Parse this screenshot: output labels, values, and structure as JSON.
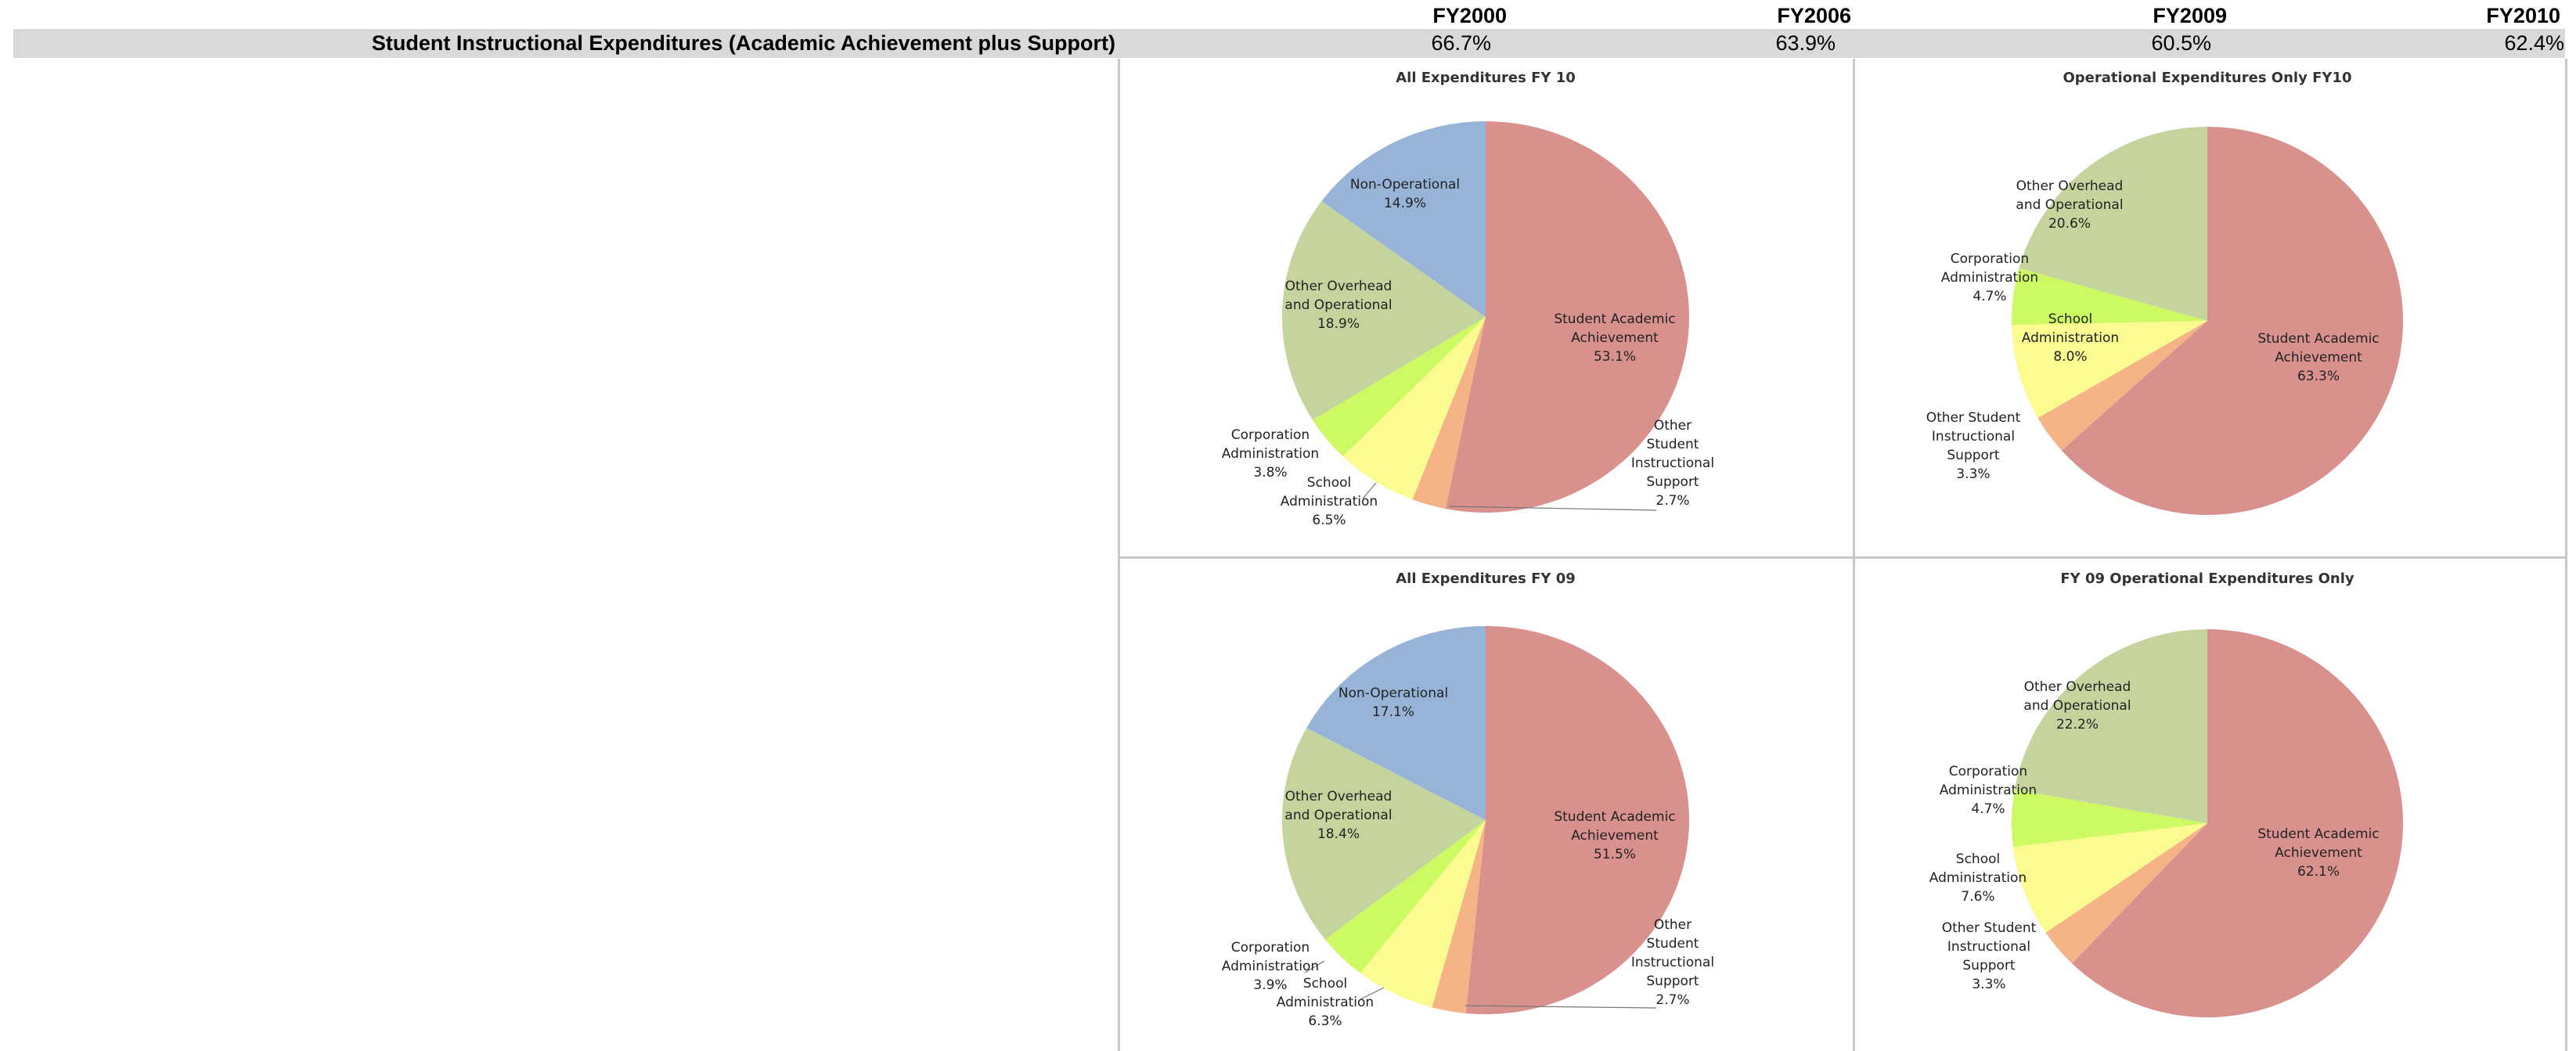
{
  "table": {
    "headers": [
      "FY2000",
      "FY2006",
      "FY2009",
      "FY2010"
    ],
    "row_label": "Student Instructional Expenditures (Academic Achievement plus Support)",
    "values": [
      "66.7%",
      "63.9%",
      "60.5%",
      "62.4%"
    ]
  },
  "colors": {
    "student_academic": "#d9918e",
    "other_student_support": "#f6b386",
    "school_admin": "#fbfb8f",
    "corp_admin": "#cdfa63",
    "other_overhead": "#c5d49d",
    "non_operational": "#97b4d8"
  },
  "chart_data": [
    {
      "type": "pie",
      "title": "All Expenditures FY 10",
      "slices": [
        {
          "label": [
            "Student Academic",
            "Achievement"
          ],
          "value": 53.1,
          "value_text": "53.1%",
          "color_key": "student_academic"
        },
        {
          "label": [
            "Other",
            "Student",
            "Instructional",
            "Support"
          ],
          "value": 2.7,
          "value_text": "2.7%",
          "color_key": "other_student_support"
        },
        {
          "label": [
            "School",
            "Administration"
          ],
          "value": 6.5,
          "value_text": "6.5%",
          "color_key": "school_admin"
        },
        {
          "label": [
            "Corporation",
            "Administration"
          ],
          "value": 3.8,
          "value_text": "3.8%",
          "color_key": "corp_admin"
        },
        {
          "label": [
            "Other Overhead",
            "and Operational"
          ],
          "value": 18.9,
          "value_text": "18.9%",
          "color_key": "other_overhead"
        },
        {
          "label": [
            "Non-Operational"
          ],
          "value": 14.9,
          "value_text": "14.9%",
          "color_key": "non_operational"
        }
      ]
    },
    {
      "type": "pie",
      "title": "Operational Expenditures Only FY10",
      "slices": [
        {
          "label": [
            "Student Academic",
            "Achievement"
          ],
          "value": 63.3,
          "value_text": "63.3%",
          "color_key": "student_academic"
        },
        {
          "label": [
            "Other Student",
            "Instructional",
            "Support"
          ],
          "value": 3.3,
          "value_text": "3.3%",
          "color_key": "other_student_support"
        },
        {
          "label": [
            "School",
            "Administration"
          ],
          "value": 8.0,
          "value_text": "8.0%",
          "color_key": "school_admin"
        },
        {
          "label": [
            "Corporation",
            "Administration"
          ],
          "value": 4.7,
          "value_text": "4.7%",
          "color_key": "corp_admin"
        },
        {
          "label": [
            "Other Overhead",
            "and Operational"
          ],
          "value": 20.6,
          "value_text": "20.6%",
          "color_key": "other_overhead"
        }
      ]
    },
    {
      "type": "pie",
      "title": "All Expenditures FY 09",
      "slices": [
        {
          "label": [
            "Student Academic",
            "Achievement"
          ],
          "value": 51.5,
          "value_text": "51.5%",
          "color_key": "student_academic"
        },
        {
          "label": [
            "Other",
            "Student",
            "Instructional",
            "Support"
          ],
          "value": 2.7,
          "value_text": "2.7%",
          "color_key": "other_student_support"
        },
        {
          "label": [
            "School",
            "Administration"
          ],
          "value": 6.3,
          "value_text": "6.3%",
          "color_key": "school_admin"
        },
        {
          "label": [
            "Corporation",
            "Administration"
          ],
          "value": 3.9,
          "value_text": "3.9%",
          "color_key": "corp_admin"
        },
        {
          "label": [
            "Other Overhead",
            "and Operational"
          ],
          "value": 18.4,
          "value_text": "18.4%",
          "color_key": "other_overhead"
        },
        {
          "label": [
            "Non-Operational"
          ],
          "value": 17.1,
          "value_text": "17.1%",
          "color_key": "non_operational"
        }
      ]
    },
    {
      "type": "pie",
      "title": "FY 09 Operational Expenditures Only",
      "slices": [
        {
          "label": [
            "Student Academic",
            "Achievement"
          ],
          "value": 62.1,
          "value_text": "62.1%",
          "color_key": "student_academic"
        },
        {
          "label": [
            "Other Student",
            "Instructional",
            "Support"
          ],
          "value": 3.3,
          "value_text": "3.3%",
          "color_key": "other_student_support"
        },
        {
          "label": [
            "School",
            "Administration"
          ],
          "value": 7.6,
          "value_text": "7.6%",
          "color_key": "school_admin"
        },
        {
          "label": [
            "Corporation",
            "Administration"
          ],
          "value": 4.7,
          "value_text": "4.7%",
          "color_key": "corp_admin"
        },
        {
          "label": [
            "Other Overhead",
            "and Operational"
          ],
          "value": 22.2,
          "value_text": "22.2%",
          "color_key": "other_overhead"
        }
      ]
    }
  ]
}
